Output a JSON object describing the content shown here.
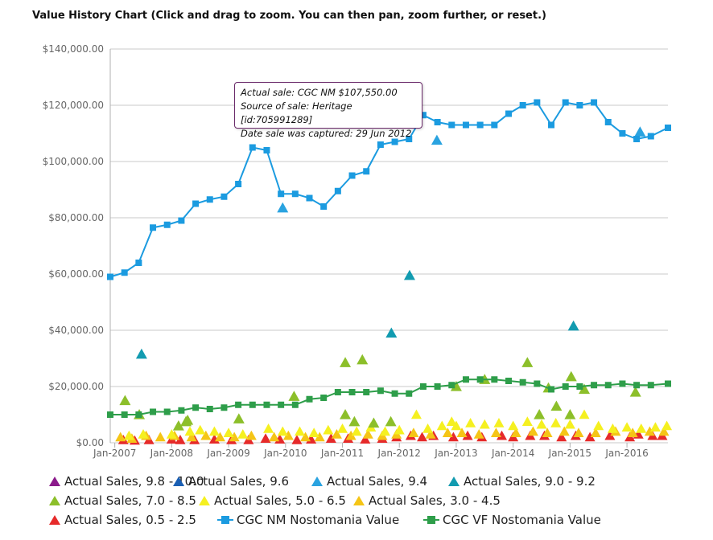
{
  "title": "Value History Chart (Click and drag to zoom. You can then pan, zoom further, or reset.)",
  "tooltip": {
    "line1": "Actual sale: CGC NM $107,550.00",
    "line2": "Source of sale: Heritage [id:705991289]",
    "line3": "Date sale was captured: 29 Jun 2012"
  },
  "colors": {
    "nm": "#1b9be0",
    "vf": "#2e9e4a",
    "s98": "#8b1a8b",
    "s96": "#1a5fb4",
    "s94": "#2aa3e0",
    "s90": "#129bb0",
    "s70": "#8cbf2a",
    "s50": "#f5f020",
    "s30": "#f5c516",
    "s05": "#e62a2a",
    "grid": "#c8c8c8",
    "axis": "#b0b0b0"
  },
  "legend": [
    {
      "label": "Actual Sales, 9.8 - 10.0",
      "marker": "triangle",
      "color_key": "s98"
    },
    {
      "label": "Actual Sales, 9.6",
      "marker": "triangle",
      "color_key": "s96"
    },
    {
      "label": "Actual Sales, 9.4",
      "marker": "triangle",
      "color_key": "s94"
    },
    {
      "label": "Actual Sales, 9.0 - 9.2",
      "marker": "triangle",
      "color_key": "s90"
    },
    {
      "label": "Actual Sales, 7.0 - 8.5",
      "marker": "triangle",
      "color_key": "s70"
    },
    {
      "label": "Actual Sales, 5.0 - 6.5",
      "marker": "triangle",
      "color_key": "s50"
    },
    {
      "label": "Actual Sales, 3.0 - 4.5",
      "marker": "triangle",
      "color_key": "s30"
    },
    {
      "label": "Actual Sales, 0.5 - 2.5",
      "marker": "triangle",
      "color_key": "s05"
    },
    {
      "label": "CGC NM Nostomania Value",
      "marker": "square-line",
      "color_key": "nm"
    },
    {
      "label": "CGC VF Nostomania Value",
      "marker": "square-line",
      "color_key": "vf"
    }
  ],
  "chart_data": {
    "type": "line",
    "title": "Value History Chart (Click and drag to zoom. You can then pan, zoom further, or reset.)",
    "xlabel": "",
    "ylabel": "",
    "x_range": [
      2006.92,
      2016.72
    ],
    "ylim": [
      0,
      140000
    ],
    "y_ticks": [
      0,
      20000,
      40000,
      60000,
      80000,
      100000,
      120000,
      140000
    ],
    "y_tick_labels": [
      "$0.00",
      "$20,000.00",
      "$40,000.00",
      "$60,000.00",
      "$80,000.00",
      "$100,000.00",
      "$120,000.00",
      "$140,000.00"
    ],
    "x_ticks": [
      2007,
      2008,
      2009,
      2010,
      2011,
      2012,
      2013,
      2014,
      2015,
      2016
    ],
    "x_tick_labels": [
      "Jan-2007",
      "Jan-2008",
      "Jan-2009",
      "Jan-2010",
      "Jan-2011",
      "Jan-2012",
      "Jan-2013",
      "Jan-2014",
      "Jan-2015",
      "Jan-2016"
    ],
    "grid": true,
    "legend_position": "bottom",
    "series": [
      {
        "name": "CGC NM Nostomania Value",
        "kind": "line",
        "color_key": "nm",
        "points": [
          [
            2006.92,
            59000
          ],
          [
            2007.17,
            60500
          ],
          [
            2007.42,
            64000
          ],
          [
            2007.67,
            76500
          ],
          [
            2007.92,
            77500
          ],
          [
            2008.17,
            79000
          ],
          [
            2008.42,
            85000
          ],
          [
            2008.67,
            86500
          ],
          [
            2008.92,
            87500
          ],
          [
            2009.17,
            92000
          ],
          [
            2009.42,
            105000
          ],
          [
            2009.67,
            104000
          ],
          [
            2009.92,
            88500
          ],
          [
            2010.17,
            88500
          ],
          [
            2010.42,
            87000
          ],
          [
            2010.67,
            84000
          ],
          [
            2010.92,
            89500
          ],
          [
            2011.17,
            95000
          ],
          [
            2011.42,
            96500
          ],
          [
            2011.67,
            106000
          ],
          [
            2011.92,
            107000
          ],
          [
            2012.17,
            108000
          ],
          [
            2012.42,
            116500
          ],
          [
            2012.67,
            114000
          ],
          [
            2012.92,
            113000
          ],
          [
            2013.17,
            113000
          ],
          [
            2013.42,
            113000
          ],
          [
            2013.67,
            113000
          ],
          [
            2013.92,
            117000
          ],
          [
            2014.17,
            120000
          ],
          [
            2014.42,
            121000
          ],
          [
            2014.67,
            113000
          ],
          [
            2014.92,
            121000
          ],
          [
            2015.17,
            120000
          ],
          [
            2015.42,
            121000
          ],
          [
            2015.67,
            114000
          ],
          [
            2015.92,
            110000
          ],
          [
            2016.17,
            108000
          ],
          [
            2016.42,
            109000
          ],
          [
            2016.72,
            112000
          ]
        ]
      },
      {
        "name": "CGC VF Nostomania Value",
        "kind": "line",
        "color_key": "vf",
        "points": [
          [
            2006.92,
            10000
          ],
          [
            2007.17,
            10000
          ],
          [
            2007.42,
            10000
          ],
          [
            2007.67,
            11000
          ],
          [
            2007.92,
            11000
          ],
          [
            2008.17,
            11500
          ],
          [
            2008.42,
            12500
          ],
          [
            2008.67,
            12000
          ],
          [
            2008.92,
            12500
          ],
          [
            2009.17,
            13500
          ],
          [
            2009.42,
            13500
          ],
          [
            2009.67,
            13500
          ],
          [
            2009.92,
            13500
          ],
          [
            2010.17,
            13500
          ],
          [
            2010.42,
            15500
          ],
          [
            2010.67,
            16000
          ],
          [
            2010.92,
            18000
          ],
          [
            2011.17,
            18000
          ],
          [
            2011.42,
            18000
          ],
          [
            2011.67,
            18500
          ],
          [
            2011.92,
            17500
          ],
          [
            2012.17,
            17500
          ],
          [
            2012.42,
            20000
          ],
          [
            2012.67,
            20000
          ],
          [
            2012.92,
            20500
          ],
          [
            2013.17,
            22500
          ],
          [
            2013.42,
            22500
          ],
          [
            2013.67,
            22500
          ],
          [
            2013.92,
            22000
          ],
          [
            2014.17,
            21500
          ],
          [
            2014.42,
            21000
          ],
          [
            2014.67,
            19000
          ],
          [
            2014.92,
            20000
          ],
          [
            2015.17,
            20000
          ],
          [
            2015.42,
            20500
          ],
          [
            2015.67,
            20500
          ],
          [
            2015.92,
            21000
          ],
          [
            2016.17,
            20500
          ],
          [
            2016.42,
            20500
          ],
          [
            2016.72,
            21000
          ]
        ]
      },
      {
        "name": "Actual Sales, 9.4",
        "kind": "scatter",
        "color_key": "s94",
        "points": [
          [
            2009.95,
            83500
          ],
          [
            2012.66,
            107550
          ],
          [
            2016.23,
            110500
          ]
        ]
      },
      {
        "name": "Actual Sales, 9.0 - 9.2",
        "kind": "scatter",
        "color_key": "s90",
        "points": [
          [
            2007.47,
            31500
          ],
          [
            2011.86,
            39000
          ],
          [
            2012.18,
            59500
          ],
          [
            2015.06,
            41500
          ]
        ]
      },
      {
        "name": "Actual Sales, 7.0 - 8.5",
        "kind": "scatter",
        "color_key": "s70",
        "points": [
          [
            2007.18,
            15000
          ],
          [
            2007.43,
            10000
          ],
          [
            2008.12,
            6000
          ],
          [
            2008.25,
            7500
          ],
          [
            2008.28,
            8000
          ],
          [
            2009.18,
            8500
          ],
          [
            2010.15,
            16500
          ],
          [
            2011.05,
            28500
          ],
          [
            2011.05,
            10000
          ],
          [
            2011.21,
            7500
          ],
          [
            2011.35,
            29500
          ],
          [
            2011.55,
            7000
          ],
          [
            2011.85,
            7500
          ],
          [
            2013.0,
            20000
          ],
          [
            2013.5,
            22500
          ],
          [
            2014.25,
            28500
          ],
          [
            2014.46,
            10000
          ],
          [
            2014.62,
            19500
          ],
          [
            2014.76,
            13000
          ],
          [
            2015.0,
            10000
          ],
          [
            2015.02,
            23500
          ],
          [
            2015.25,
            19000
          ],
          [
            2016.15,
            18000
          ]
        ]
      },
      {
        "name": "Actual Sales, 5.0 - 6.5",
        "kind": "scatter",
        "color_key": "s50",
        "points": [
          [
            2007.25,
            2500
          ],
          [
            2007.5,
            3000
          ],
          [
            2008.0,
            3000
          ],
          [
            2008.32,
            4000
          ],
          [
            2008.5,
            4500
          ],
          [
            2008.75,
            4000
          ],
          [
            2009.0,
            3500
          ],
          [
            2009.25,
            3000
          ],
          [
            2009.7,
            5000
          ],
          [
            2009.95,
            4000
          ],
          [
            2010.25,
            4000
          ],
          [
            2010.5,
            3500
          ],
          [
            2010.75,
            4500
          ],
          [
            2011.0,
            5000
          ],
          [
            2011.25,
            4000
          ],
          [
            2011.5,
            5500
          ],
          [
            2011.75,
            4000
          ],
          [
            2012.0,
            4500
          ],
          [
            2012.3,
            10000
          ],
          [
            2012.5,
            5000
          ],
          [
            2012.75,
            6000
          ],
          [
            2012.92,
            7500
          ],
          [
            2013.0,
            6000
          ],
          [
            2013.25,
            7000
          ],
          [
            2013.5,
            6500
          ],
          [
            2013.75,
            7000
          ],
          [
            2014.0,
            6000
          ],
          [
            2014.25,
            7500
          ],
          [
            2014.5,
            6500
          ],
          [
            2014.75,
            7000
          ],
          [
            2015.0,
            6500
          ],
          [
            2015.25,
            10000
          ],
          [
            2015.5,
            6000
          ],
          [
            2015.75,
            5000
          ],
          [
            2016.0,
            5500
          ],
          [
            2016.25,
            5000
          ],
          [
            2016.5,
            5500
          ],
          [
            2016.7,
            6000
          ]
        ]
      },
      {
        "name": "Actual Sales, 3.0 - 4.5",
        "kind": "scatter",
        "color_key": "s30",
        "points": [
          [
            2007.1,
            2000
          ],
          [
            2007.3,
            1500
          ],
          [
            2007.55,
            2500
          ],
          [
            2007.8,
            2000
          ],
          [
            2008.05,
            2500
          ],
          [
            2008.35,
            2000
          ],
          [
            2008.6,
            2500
          ],
          [
            2008.85,
            2000
          ],
          [
            2009.1,
            2000
          ],
          [
            2009.4,
            2500
          ],
          [
            2009.8,
            2000
          ],
          [
            2010.05,
            2500
          ],
          [
            2010.35,
            2000
          ],
          [
            2010.6,
            2000
          ],
          [
            2010.9,
            3000
          ],
          [
            2011.15,
            2500
          ],
          [
            2011.45,
            3000
          ],
          [
            2011.7,
            2500
          ],
          [
            2011.95,
            3000
          ],
          [
            2012.25,
            3500
          ],
          [
            2012.55,
            3000
          ],
          [
            2012.85,
            3500
          ],
          [
            2013.1,
            3500
          ],
          [
            2013.4,
            3000
          ],
          [
            2013.7,
            3500
          ],
          [
            2014.05,
            3500
          ],
          [
            2014.35,
            4000
          ],
          [
            2014.6,
            3500
          ],
          [
            2014.9,
            4000
          ],
          [
            2015.15,
            3500
          ],
          [
            2015.45,
            3500
          ],
          [
            2015.8,
            4000
          ],
          [
            2016.1,
            3500
          ],
          [
            2016.4,
            4000
          ],
          [
            2016.65,
            4000
          ]
        ]
      },
      {
        "name": "Actual Sales, 0.5 - 2.5",
        "kind": "scatter",
        "color_key": "s05",
        "points": [
          [
            2007.15,
            1000
          ],
          [
            2007.35,
            800
          ],
          [
            2007.6,
            1000
          ],
          [
            2008.0,
            1200
          ],
          [
            2008.15,
            1000
          ],
          [
            2008.4,
            1000
          ],
          [
            2008.75,
            1200
          ],
          [
            2009.05,
            1000
          ],
          [
            2009.35,
            1000
          ],
          [
            2009.65,
            1500
          ],
          [
            2009.9,
            1200
          ],
          [
            2010.2,
            1000
          ],
          [
            2010.45,
            1200
          ],
          [
            2010.8,
            1500
          ],
          [
            2011.1,
            1500
          ],
          [
            2011.4,
            1200
          ],
          [
            2011.7,
            1500
          ],
          [
            2011.95,
            2000
          ],
          [
            2012.2,
            2500
          ],
          [
            2012.4,
            2000
          ],
          [
            2012.6,
            2500
          ],
          [
            2012.95,
            2000
          ],
          [
            2013.2,
            2500
          ],
          [
            2013.45,
            2000
          ],
          [
            2013.8,
            2500
          ],
          [
            2014.0,
            2000
          ],
          [
            2014.3,
            2500
          ],
          [
            2014.55,
            2500
          ],
          [
            2014.85,
            2000
          ],
          [
            2015.1,
            2500
          ],
          [
            2015.35,
            2000
          ],
          [
            2015.7,
            2500
          ],
          [
            2016.05,
            2000
          ],
          [
            2016.2,
            3000
          ],
          [
            2016.45,
            2500
          ],
          [
            2016.62,
            2500
          ]
        ]
      }
    ]
  }
}
